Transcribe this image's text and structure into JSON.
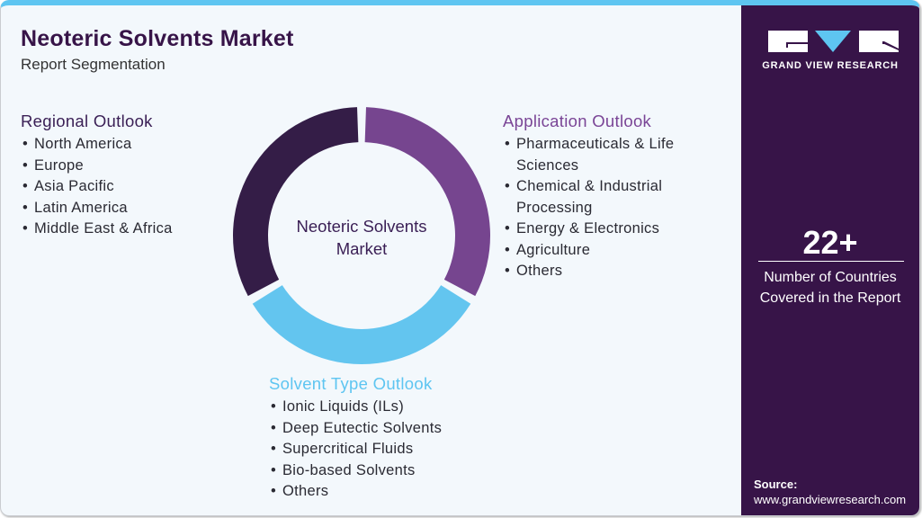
{
  "header": {
    "title": "Neoteric Solvents Market",
    "subtitle": "Report Segmentation"
  },
  "donut": {
    "center_label_line1": "Neoteric Solvents",
    "center_label_line2": "Market",
    "segments": [
      {
        "name": "Application Outlook",
        "color": "#76458f",
        "start_deg": 2,
        "end_deg": 118
      },
      {
        "name": "Solvent Type Outlook",
        "color": "#63c5ef",
        "start_deg": 122,
        "end_deg": 238
      },
      {
        "name": "Regional Outlook",
        "color": "#341d47",
        "start_deg": 242,
        "end_deg": 358
      }
    ]
  },
  "regional": {
    "heading": "Regional Outlook",
    "color": "#3a1f55",
    "items": [
      "North America",
      "Europe",
      "Asia Pacific",
      "Latin America",
      "Middle East & Africa"
    ]
  },
  "application": {
    "heading": "Application Outlook",
    "color": "#7a4596",
    "items": [
      "Pharmaceuticals & Life Sciences",
      "Chemical & Industrial Processing",
      "Energy & Electronics",
      "Agriculture",
      "Others"
    ]
  },
  "solvent": {
    "heading": "Solvent Type Outlook",
    "color": "#5ec5f1",
    "items": [
      "Ionic Liquids (ILs)",
      "Deep Eutectic Solvents",
      "Supercritical Fluids",
      "Bio-based Solvents",
      "Others"
    ]
  },
  "sidebar": {
    "brand": "GRAND VIEW RESEARCH",
    "stat_value": "22+",
    "stat_label_line1": "Number of Countries",
    "stat_label_line2": "Covered in the Report",
    "source_label": "Source:",
    "source_url": "www.grandviewresearch.com"
  },
  "colors": {
    "background": "#f3f8fc",
    "accent_blue": "#5ec5f1",
    "brand_purple": "#371448",
    "mid_purple": "#76458f"
  }
}
